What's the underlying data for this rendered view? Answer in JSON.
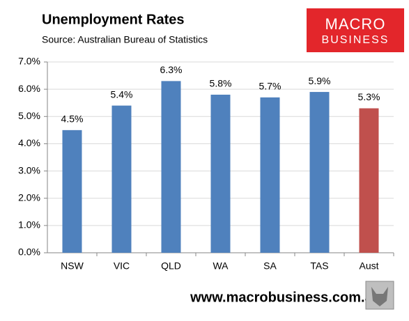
{
  "chart_data": {
    "type": "bar",
    "title": "Unemployment Rates",
    "subtitle": "Source: Australian Bureau of Statistics",
    "logo": [
      "MACRO",
      "BUSINESS"
    ],
    "footer": "www.macrobusiness.com.au",
    "categories": [
      "NSW",
      "VIC",
      "QLD",
      "WA",
      "SA",
      "TAS",
      "Aust"
    ],
    "values": [
      4.5,
      5.4,
      6.3,
      5.8,
      5.7,
      5.9,
      5.3
    ],
    "value_labels": [
      "4.5%",
      "5.4%",
      "6.3%",
      "5.8%",
      "5.7%",
      "5.9%",
      "5.3%"
    ],
    "colors": [
      "#4f81bd",
      "#4f81bd",
      "#4f81bd",
      "#4f81bd",
      "#4f81bd",
      "#4f81bd",
      "#c0504d"
    ],
    "ylim": [
      0,
      7
    ],
    "yticks": [
      {
        "value": 0,
        "label": "0.0%"
      },
      {
        "value": 1,
        "label": "1.0%"
      },
      {
        "value": 2,
        "label": "2.0%"
      },
      {
        "value": 3,
        "label": "3.0%"
      },
      {
        "value": 4,
        "label": "4.0%"
      },
      {
        "value": 5,
        "label": "5.0%"
      },
      {
        "value": 6,
        "label": "6.0%"
      },
      {
        "value": 7,
        "label": "7.0%"
      }
    ],
    "grid": true
  }
}
